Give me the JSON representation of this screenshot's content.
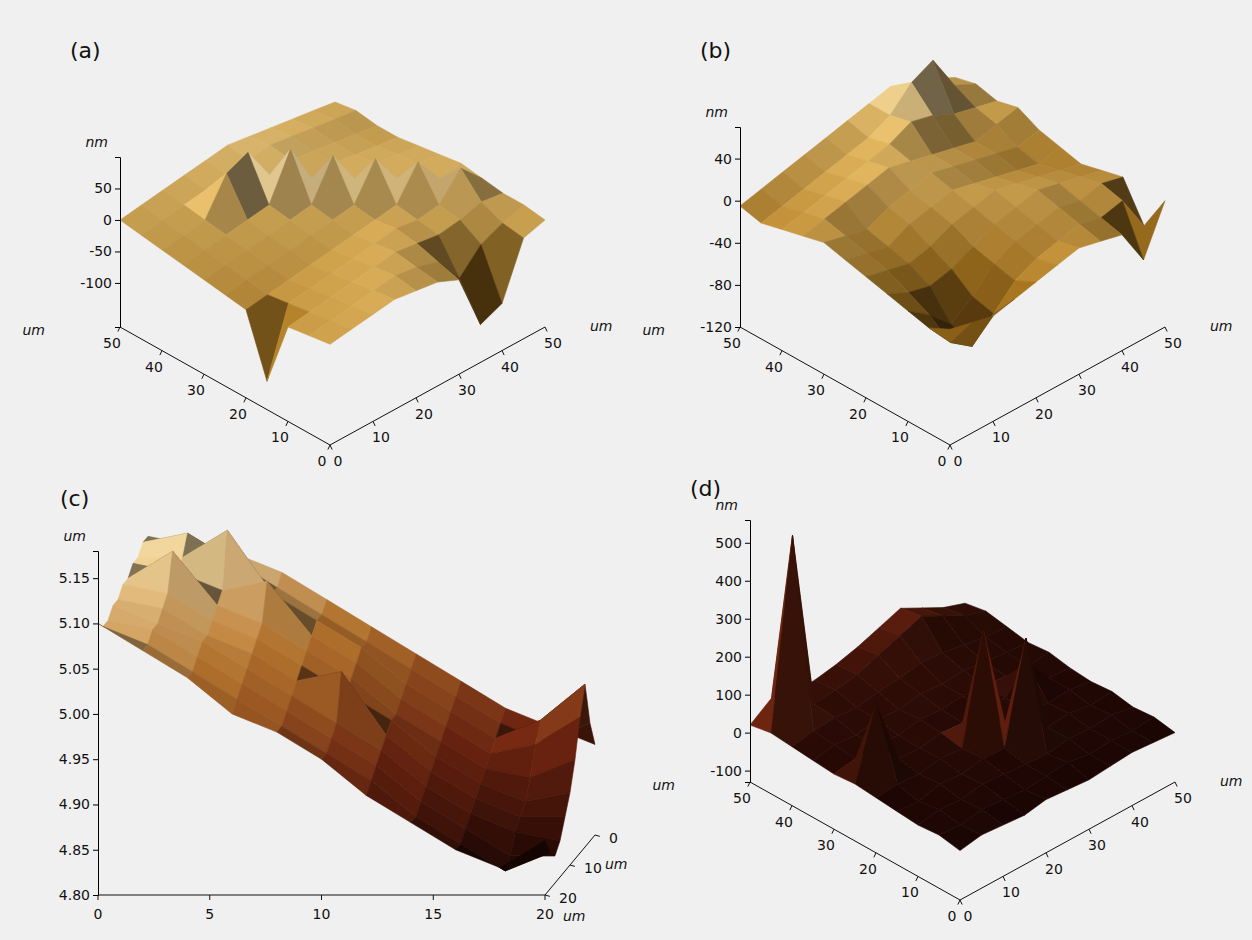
{
  "chart_data": [
    {
      "type": "surface",
      "title": "(a)",
      "x_label": "um",
      "y_label": "um",
      "z_label": "nm",
      "x": [
        0,
        5,
        10,
        15,
        20,
        25,
        30,
        35,
        40,
        45,
        50
      ],
      "y": [
        0,
        5,
        10,
        15,
        20,
        25,
        30,
        35,
        40,
        45,
        50
      ],
      "z": [
        [
          -10,
          -5,
          0,
          5,
          0,
          -5,
          -20,
          -110,
          -95,
          -10,
          0
        ],
        [
          -15,
          -10,
          -5,
          0,
          5,
          0,
          -10,
          -55,
          -20,
          -5,
          5
        ],
        [
          -20,
          -15,
          -10,
          -5,
          0,
          5,
          0,
          -5,
          0,
          10,
          5
        ],
        [
          -125,
          -20,
          -15,
          -10,
          -5,
          0,
          5,
          0,
          5,
          45,
          10
        ],
        [
          -30,
          -25,
          -20,
          -15,
          -10,
          -5,
          0,
          5,
          55,
          10,
          15
        ],
        [
          -25,
          -20,
          -15,
          -10,
          -5,
          0,
          5,
          60,
          10,
          15,
          10
        ],
        [
          -20,
          -15,
          -10,
          -5,
          0,
          5,
          65,
          10,
          15,
          10,
          5
        ],
        [
          -15,
          -10,
          -5,
          0,
          5,
          75,
          10,
          15,
          10,
          5,
          0
        ],
        [
          -10,
          -5,
          0,
          55,
          70,
          15,
          20,
          15,
          10,
          5,
          0
        ],
        [
          -5,
          0,
          5,
          10,
          15,
          20,
          25,
          20,
          15,
          10,
          5
        ],
        [
          0,
          5,
          10,
          15,
          20,
          25,
          20,
          15,
          10,
          5,
          0
        ]
      ],
      "xlim": [
        0,
        50
      ],
      "xticks": [
        0,
        10,
        20,
        30,
        40,
        50
      ],
      "ylim": [
        0,
        50
      ],
      "yticks": [
        0,
        10,
        20,
        30,
        40,
        50
      ],
      "zlim": [
        -170,
        100
      ],
      "zticks": [
        -100,
        -50,
        0,
        50
      ]
    },
    {
      "type": "surface",
      "title": "(b)",
      "x_label": "um",
      "y_label": "um",
      "z_label": "nm",
      "x": [
        0,
        5,
        10,
        15,
        20,
        25,
        30,
        35,
        40,
        45,
        50
      ],
      "y": [
        0,
        5,
        10,
        15,
        20,
        25,
        30,
        35,
        40,
        45,
        50
      ],
      "z": [
        [
          -10,
          -15,
          -20,
          -15,
          -10,
          -5,
          0,
          -5,
          -10,
          -45,
          0
        ],
        [
          -20,
          -45,
          -60,
          -40,
          -20,
          -10,
          -5,
          0,
          -5,
          0,
          -35
        ],
        [
          -15,
          -30,
          -50,
          -35,
          -15,
          -5,
          0,
          5,
          0,
          5,
          0
        ],
        [
          -10,
          -20,
          -25,
          -20,
          -10,
          0,
          5,
          10,
          5,
          0,
          -5
        ],
        [
          -5,
          -10,
          -15,
          -10,
          0,
          5,
          10,
          5,
          0,
          -5,
          -10
        ],
        [
          0,
          -5,
          -10,
          0,
          5,
          10,
          5,
          0,
          -5,
          -10,
          -5
        ],
        [
          5,
          0,
          -5,
          5,
          10,
          15,
          10,
          5,
          0,
          -5,
          0
        ],
        [
          0,
          5,
          10,
          15,
          20,
          15,
          10,
          5,
          0,
          5,
          10
        ],
        [
          -5,
          0,
          5,
          10,
          15,
          20,
          30,
          25,
          15,
          10,
          5
        ],
        [
          -10,
          -5,
          0,
          5,
          10,
          15,
          25,
          45,
          55,
          20,
          10
        ],
        [
          -5,
          0,
          5,
          10,
          15,
          20,
          25,
          30,
          20,
          15,
          5
        ]
      ],
      "xlim": [
        0,
        50
      ],
      "xticks": [
        0,
        10,
        20,
        30,
        40,
        50
      ],
      "ylim": [
        0,
        50
      ],
      "yticks": [
        0,
        10,
        20,
        30,
        40,
        50
      ],
      "zlim": [
        -120,
        70
      ],
      "zticks": [
        -120,
        -80,
        -40,
        0,
        40
      ]
    },
    {
      "type": "surface",
      "title": "(c)",
      "x_label": "um",
      "y_label": "um",
      "z_label": "um",
      "x": [
        0,
        2,
        4,
        6,
        8,
        10,
        12,
        14,
        16,
        18,
        20
      ],
      "y": [
        0,
        2,
        4,
        6,
        8,
        10,
        12,
        14,
        16,
        18,
        20
      ],
      "z": [
        [
          5.13,
          5.12,
          5.11,
          5.09,
          5.06,
          5.03,
          5.0,
          4.97,
          4.94,
          4.92,
          4.9
        ],
        [
          5.13,
          5.14,
          5.11,
          5.08,
          5.05,
          5.02,
          4.99,
          4.96,
          4.93,
          4.91,
          4.93
        ],
        [
          5.12,
          5.12,
          5.15,
          5.08,
          5.05,
          5.02,
          4.98,
          4.95,
          4.92,
          4.94,
          4.98
        ],
        [
          5.12,
          5.11,
          5.09,
          5.1,
          5.04,
          5.01,
          4.97,
          4.94,
          4.91,
          4.92,
          4.95
        ],
        [
          5.11,
          5.14,
          5.08,
          5.06,
          5.03,
          5.0,
          4.96,
          4.93,
          4.9,
          4.89,
          4.91
        ],
        [
          5.11,
          5.1,
          5.07,
          5.05,
          5.02,
          4.99,
          4.96,
          4.92,
          4.89,
          4.87,
          4.88
        ],
        [
          5.1,
          5.09,
          5.06,
          5.04,
          5.01,
          5.02,
          4.95,
          4.91,
          4.88,
          4.86,
          4.86
        ],
        [
          5.1,
          5.08,
          5.06,
          5.03,
          5.0,
          4.97,
          4.94,
          4.9,
          4.87,
          4.85,
          4.84
        ],
        [
          5.09,
          5.08,
          5.05,
          5.02,
          4.99,
          4.96,
          4.93,
          4.89,
          4.86,
          4.83,
          4.83
        ],
        [
          5.09,
          5.07,
          5.04,
          5.01,
          4.98,
          4.95,
          4.92,
          4.88,
          4.85,
          4.82,
          4.84
        ],
        [
          5.1,
          5.07,
          5.04,
          5.0,
          4.98,
          4.95,
          4.91,
          4.88,
          4.85,
          4.83,
          4.86
        ]
      ],
      "xlim": [
        0,
        20
      ],
      "xticks": [
        0,
        5,
        10,
        15,
        20
      ],
      "ylim": [
        0,
        20
      ],
      "yticks": [
        0,
        10,
        20
      ],
      "zlim": [
        4.8,
        5.18
      ],
      "zticks": [
        {
          "value": 4.8,
          "label": "4.80"
        },
        4.85,
        {
          "value": 4.9,
          "label": "4.90"
        },
        4.95,
        {
          "value": 5,
          "label": "5.00"
        },
        5.05,
        {
          "value": 5.1,
          "label": "5.10"
        },
        5.15
      ]
    },
    {
      "type": "surface",
      "title": "(d)",
      "x_label": "um",
      "y_label": "um",
      "z_label": "nm",
      "x": [
        0,
        5,
        10,
        15,
        20,
        25,
        30,
        35,
        40,
        45,
        50
      ],
      "y": [
        0,
        5,
        10,
        15,
        20,
        25,
        30,
        35,
        40,
        45,
        50
      ],
      "z": [
        [
          0,
          10,
          5,
          0,
          10,
          5,
          0,
          5,
          10,
          5,
          0
        ],
        [
          10,
          5,
          15,
          10,
          5,
          10,
          15,
          5,
          10,
          5,
          10
        ],
        [
          5,
          15,
          10,
          20,
          15,
          10,
          5,
          15,
          10,
          15,
          5
        ],
        [
          10,
          5,
          20,
          15,
          25,
          20,
          280,
          15,
          20,
          10,
          15
        ],
        [
          15,
          20,
          15,
          25,
          20,
          300,
          25,
          20,
          15,
          20,
          10
        ],
        [
          20,
          200,
          25,
          20,
          30,
          25,
          20,
          30,
          90,
          20,
          15
        ],
        [
          15,
          25,
          30,
          25,
          35,
          30,
          35,
          30,
          25,
          20,
          25
        ],
        [
          20,
          30,
          25,
          35,
          30,
          40,
          35,
          40,
          30,
          25,
          20
        ],
        [
          25,
          35,
          40,
          35,
          45,
          50,
          60,
          55,
          45,
          35,
          30
        ],
        [
          30,
          520,
          45,
          50,
          60,
          80,
          100,
          120,
          90,
          60,
          40
        ],
        [
          20,
          60,
          40,
          45,
          55,
          70,
          90,
          110,
          80,
          50,
          30
        ]
      ],
      "xlim": [
        0,
        50
      ],
      "xticks": [
        0,
        10,
        20,
        30,
        40,
        50
      ],
      "ylim": [
        0,
        50
      ],
      "yticks": [
        0,
        10,
        20,
        30,
        40,
        50
      ],
      "zlim": [
        -130,
        560
      ],
      "zticks": [
        -100,
        0,
        100,
        200,
        300,
        400,
        500
      ]
    }
  ]
}
